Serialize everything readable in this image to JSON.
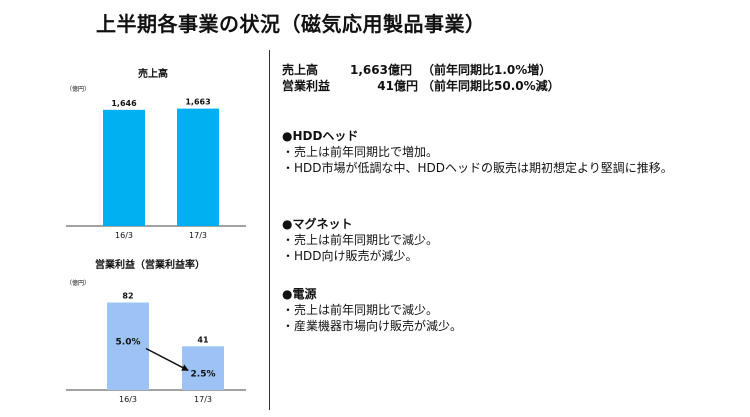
{
  "page": {
    "title": "上半期各事業の状況（磁気応用製品事業）"
  },
  "charts_labels": {
    "sales": {
      "title": "売上高",
      "unit": "（億円）"
    },
    "profit": {
      "title": "営業利益（営業利益率）",
      "unit": "（億円）"
    }
  },
  "chart_data": [
    {
      "type": "bar",
      "title": "売上高",
      "unit": "（億円）",
      "categories": [
        "16/3",
        "17/3"
      ],
      "values": [
        1646,
        1663
      ],
      "value_labels": [
        "1,646",
        "1,663"
      ],
      "ylim": [
        0,
        1700
      ],
      "grid": false,
      "colors": [
        "#00b0f0"
      ]
    },
    {
      "type": "bar",
      "title": "営業利益（営業利益率）",
      "unit": "（億円）",
      "categories": [
        "16/3",
        "17/3"
      ],
      "values": [
        82,
        41
      ],
      "value_labels": [
        "82",
        "41"
      ],
      "margins": [
        "5.0%",
        "2.5%"
      ],
      "ylim": [
        0,
        90
      ],
      "grid": false,
      "colors": [
        "#9dc3f5"
      ]
    }
  ],
  "summary": [
    {
      "label": "売上高",
      "value": "1,663億円",
      "note": "（前年同期比1.0%増）"
    },
    {
      "label": "営業利益",
      "value": "41億円",
      "note": "（前年同期比50.0%減）"
    }
  ],
  "sections": [
    {
      "heading": "●HDDヘッド",
      "items": [
        "・売上は前年同期比で増加。",
        "・HDD市場が低調な中、HDDヘッドの販売は期初想定より堅調に推移。"
      ]
    },
    {
      "heading": "●マグネット",
      "items": [
        "・売上は前年同期比で減少。",
        "・HDD向け販売が減少。"
      ]
    },
    {
      "heading": "●電源",
      "items": [
        "・売上は前年同期比で減少。",
        "・産業機器市場向け販売が減少。"
      ]
    }
  ]
}
